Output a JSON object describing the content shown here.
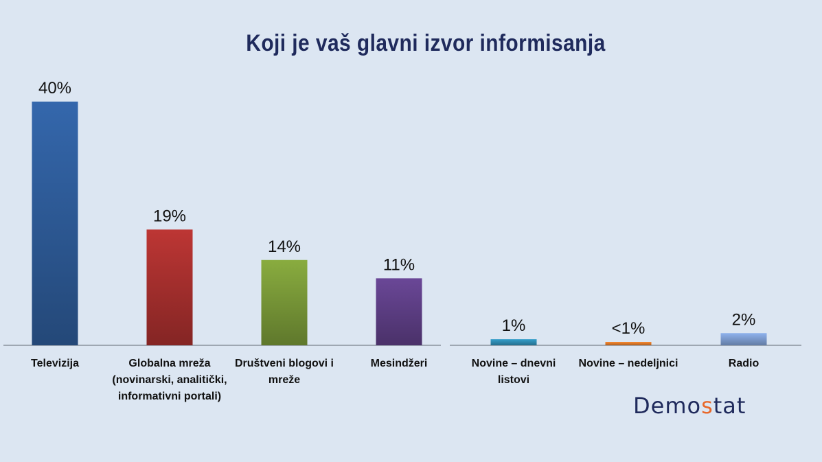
{
  "chart_data": [
    {
      "type": "bar",
      "title": "Koji je vaš glavni izvor informisanja",
      "categories": [
        "Televizija",
        "Globalna mreža (novinarski, analitički, informativni portali)",
        "Društveni blogovi i mreže",
        "Mesindžeri"
      ],
      "values": [
        40,
        19,
        14,
        11
      ],
      "value_labels": [
        "40%",
        "19%",
        "14%",
        "11%"
      ],
      "colors": [
        "#2e5c9a",
        "#a9302e",
        "#7a9a38",
        "#5f3f87"
      ],
      "ylim": [
        0,
        40
      ],
      "grid": false
    },
    {
      "type": "bar",
      "categories": [
        "Novine – dnevni listovi",
        "Novine – nedeljnici",
        "Radio"
      ],
      "values": [
        1,
        0.5,
        2
      ],
      "value_labels": [
        "1%",
        "<1%",
        "2%"
      ],
      "colors": [
        "#2f8eb5",
        "#e07b2a",
        "#7f9fd4"
      ],
      "ylim": [
        0,
        40
      ],
      "grid": false
    }
  ],
  "logo": {
    "text_before": "Demo",
    "text_accent": "s",
    "text_after": "tat",
    "accent_color": "#e8682a"
  }
}
